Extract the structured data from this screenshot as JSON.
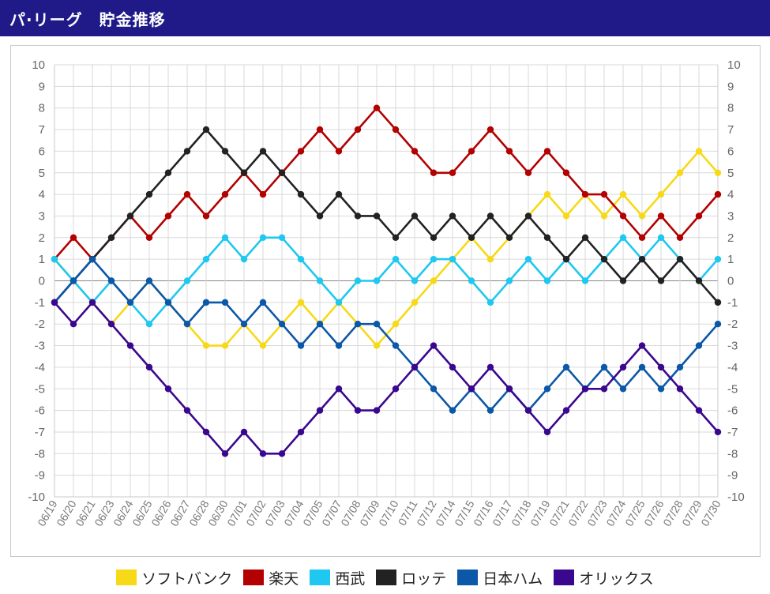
{
  "header": {
    "title": "パ·リーグ　貯金推移"
  },
  "chart_data": {
    "type": "line",
    "title": "",
    "xlabel": "",
    "ylabel": "",
    "ylim": [
      -10,
      10
    ],
    "y_ticks": [
      "10",
      "9",
      "8",
      "7",
      "6",
      "5",
      "4",
      "3",
      "2",
      "1",
      "0",
      "-1",
      "-2",
      "-3",
      "-4",
      "-5",
      "-6",
      "-7",
      "-8",
      "-9",
      "-10"
    ],
    "grid": true,
    "dual_y_axis": true,
    "legend_position": "bottom",
    "categories": [
      "06/19",
      "06/20",
      "06/21",
      "06/23",
      "06/24",
      "06/25",
      "06/26",
      "06/27",
      "06/28",
      "06/30",
      "07/01",
      "07/02",
      "07/03",
      "07/04",
      "07/05",
      "07/07",
      "07/08",
      "07/09",
      "07/10",
      "07/11",
      "07/12",
      "07/14",
      "07/15",
      "07/16",
      "07/17",
      "07/18",
      "07/19",
      "07/21",
      "07/22",
      "07/23",
      "07/24",
      "07/25",
      "07/26",
      "07/28",
      "07/29",
      "07/30"
    ],
    "series": [
      {
        "name": "ソフトバンク",
        "color": "#f7d917",
        "values": [
          1,
          0,
          -1,
          -2,
          -1,
          0,
          -1,
          -2,
          -3,
          -3,
          -2,
          -3,
          -2,
          -1,
          -2,
          -1,
          -2,
          -3,
          -2,
          -1,
          0,
          1,
          2,
          1,
          2,
          3,
          4,
          3,
          4,
          3,
          4,
          3,
          4,
          5,
          6,
          5
        ]
      },
      {
        "name": "楽天",
        "color": "#b30000",
        "values": [
          1,
          2,
          1,
          2,
          3,
          2,
          3,
          4,
          3,
          4,
          5,
          4,
          5,
          6,
          7,
          6,
          7,
          8,
          7,
          6,
          5,
          5,
          6,
          7,
          6,
          5,
          6,
          5,
          4,
          4,
          3,
          2,
          3,
          2,
          3,
          4
        ]
      },
      {
        "name": "西武",
        "color": "#1ec8f0",
        "values": [
          1,
          0,
          -1,
          0,
          -1,
          -2,
          -1,
          0,
          1,
          2,
          1,
          2,
          2,
          1,
          0,
          -1,
          0,
          0,
          1,
          0,
          1,
          1,
          0,
          -1,
          0,
          1,
          0,
          1,
          0,
          1,
          2,
          1,
          2,
          1,
          0,
          1
        ]
      },
      {
        "name": "ロッテ",
        "color": "#222222",
        "values": [
          -1,
          0,
          1,
          2,
          3,
          4,
          5,
          6,
          7,
          6,
          5,
          6,
          5,
          4,
          3,
          4,
          3,
          3,
          2,
          3,
          2,
          3,
          2,
          3,
          2,
          3,
          2,
          1,
          2,
          1,
          0,
          1,
          0,
          1,
          0,
          -1
        ]
      },
      {
        "name": "日本ハム",
        "color": "#0b57a8",
        "values": [
          -1,
          0,
          1,
          0,
          -1,
          0,
          -1,
          -2,
          -1,
          -1,
          -2,
          -1,
          -2,
          -3,
          -2,
          -3,
          -2,
          -2,
          -3,
          -4,
          -5,
          -6,
          -5,
          -6,
          -5,
          -6,
          -5,
          -4,
          -5,
          -4,
          -5,
          -4,
          -5,
          -4,
          -3,
          -2
        ]
      },
      {
        "name": "オリックス",
        "color": "#3a078f",
        "values": [
          -1,
          -2,
          -1,
          -2,
          -3,
          -4,
          -5,
          -6,
          -7,
          -8,
          -7,
          -8,
          -8,
          -7,
          -6,
          -5,
          -6,
          -6,
          -5,
          -4,
          -3,
          -4,
          -5,
          -4,
          -5,
          -6,
          -7,
          -6,
          -5,
          -5,
          -4,
          -3,
          -4,
          -5,
          -6,
          -7
        ]
      }
    ]
  }
}
